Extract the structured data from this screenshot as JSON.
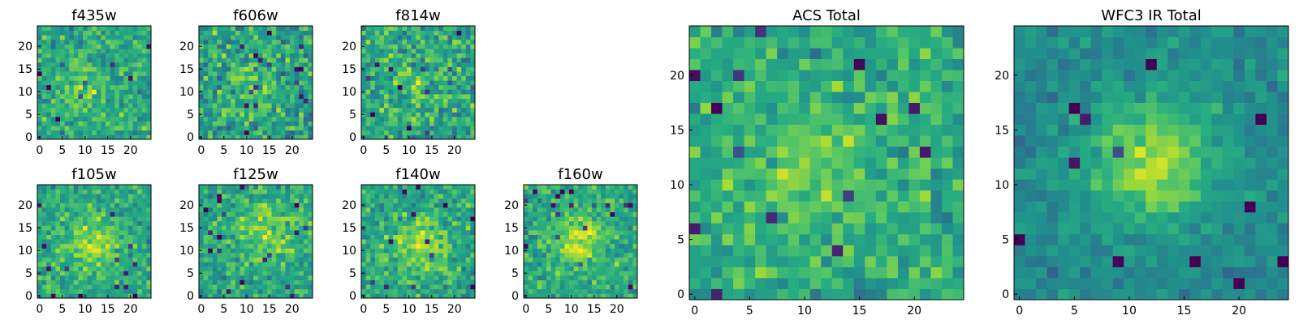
{
  "chart_data": [
    {
      "type": "heatmap",
      "title": "f435w",
      "xlim": [
        0,
        24
      ],
      "ylim": [
        0,
        24
      ],
      "xticks": [
        "0",
        "5",
        "10",
        "15",
        "20"
      ],
      "yticks": [
        "0",
        "5",
        "10",
        "15",
        "20"
      ],
      "colormap": "viridis",
      "seed": 11,
      "center": [
        9,
        11
      ],
      "sigma": 4.0,
      "peak": 0.15,
      "noise": 0.6,
      "offset": 0.55,
      "bg": 0.6
    },
    {
      "type": "heatmap",
      "title": "f606w",
      "xlim": [
        0,
        24
      ],
      "ylim": [
        0,
        24
      ],
      "xticks": [
        "0",
        "5",
        "10",
        "15",
        "20"
      ],
      "yticks": [
        "0",
        "5",
        "10",
        "15",
        "20"
      ],
      "colormap": "viridis",
      "seed": 22,
      "center": [
        12,
        12
      ],
      "sigma": 4.0,
      "peak": 0.1,
      "noise": 0.75,
      "offset": 0.55,
      "bg": 0.6
    },
    {
      "type": "heatmap",
      "title": "f814w",
      "xlim": [
        0,
        24
      ],
      "ylim": [
        0,
        24
      ],
      "xticks": [
        "0",
        "5",
        "10",
        "15",
        "20"
      ],
      "yticks": [
        "0",
        "5",
        "10",
        "15",
        "20"
      ],
      "colormap": "viridis",
      "seed": 33,
      "center": [
        12,
        12
      ],
      "sigma": 4.0,
      "peak": 0.1,
      "noise": 0.75,
      "offset": 0.55,
      "bg": 0.6
    },
    {
      "type": "heatmap",
      "title": "f105w",
      "xlim": [
        0,
        24
      ],
      "ylim": [
        0,
        24
      ],
      "xticks": [
        "0",
        "5",
        "10",
        "15",
        "20"
      ],
      "yticks": [
        "0",
        "5",
        "10",
        "15",
        "20"
      ],
      "colormap": "viridis",
      "seed": 44,
      "center": [
        11,
        12
      ],
      "sigma": 4.5,
      "peak": 0.25,
      "noise": 0.55,
      "offset": 0.55,
      "bg": 0.6
    },
    {
      "type": "heatmap",
      "title": "f125w",
      "xlim": [
        0,
        24
      ],
      "ylim": [
        0,
        24
      ],
      "xticks": [
        "0",
        "5",
        "10",
        "15",
        "20"
      ],
      "yticks": [
        "0",
        "5",
        "10",
        "15",
        "20"
      ],
      "colormap": "viridis",
      "seed": 55,
      "center": [
        14,
        14
      ],
      "sigma": 4.5,
      "peak": 0.2,
      "noise": 0.6,
      "offset": 0.55,
      "bg": 0.6
    },
    {
      "type": "heatmap",
      "title": "f140w",
      "xlim": [
        0,
        24
      ],
      "ylim": [
        0,
        24
      ],
      "xticks": [
        "0",
        "5",
        "10",
        "15",
        "20"
      ],
      "yticks": [
        "0",
        "5",
        "10",
        "15",
        "20"
      ],
      "colormap": "viridis",
      "seed": 66,
      "center": [
        12,
        11
      ],
      "sigma": 4.5,
      "peak": 0.25,
      "noise": 0.6,
      "offset": 0.55,
      "bg": 0.6
    },
    {
      "type": "heatmap",
      "title": "f160w",
      "xlim": [
        0,
        24
      ],
      "ylim": [
        0,
        24
      ],
      "xticks": [
        "0",
        "5",
        "10",
        "15",
        "20"
      ],
      "yticks": [
        "0",
        "5",
        "10",
        "15",
        "20"
      ],
      "colormap": "viridis",
      "seed": 77,
      "center": [
        12,
        12
      ],
      "sigma": 4.0,
      "peak": 0.3,
      "noise": 0.55,
      "offset": 0.55,
      "bg": 0.6
    },
    {
      "type": "heatmap",
      "title": "ACS Total",
      "xlim": [
        0,
        24
      ],
      "ylim": [
        0,
        24
      ],
      "xticks": [
        "0",
        "5",
        "10",
        "15",
        "20"
      ],
      "yticks": [
        "0",
        "5",
        "10",
        "15",
        "20"
      ],
      "colormap": "viridis",
      "seed": 88,
      "center": [
        10,
        11
      ],
      "sigma": 4.0,
      "peak": 0.15,
      "noise": 0.55,
      "offset": 0.55,
      "bg": 0.62
    },
    {
      "type": "heatmap",
      "title": "WFC3 IR Total",
      "xlim": [
        0,
        24
      ],
      "ylim": [
        0,
        24
      ],
      "xticks": [
        "0",
        "5",
        "10",
        "15",
        "20"
      ],
      "yticks": [
        "0",
        "5",
        "10",
        "15",
        "20"
      ],
      "colormap": "viridis",
      "seed": 99,
      "center": [
        12,
        12
      ],
      "sigma": 4.0,
      "peak": 0.38,
      "noise": 0.35,
      "offset": 0.55,
      "bg": 0.48
    }
  ]
}
